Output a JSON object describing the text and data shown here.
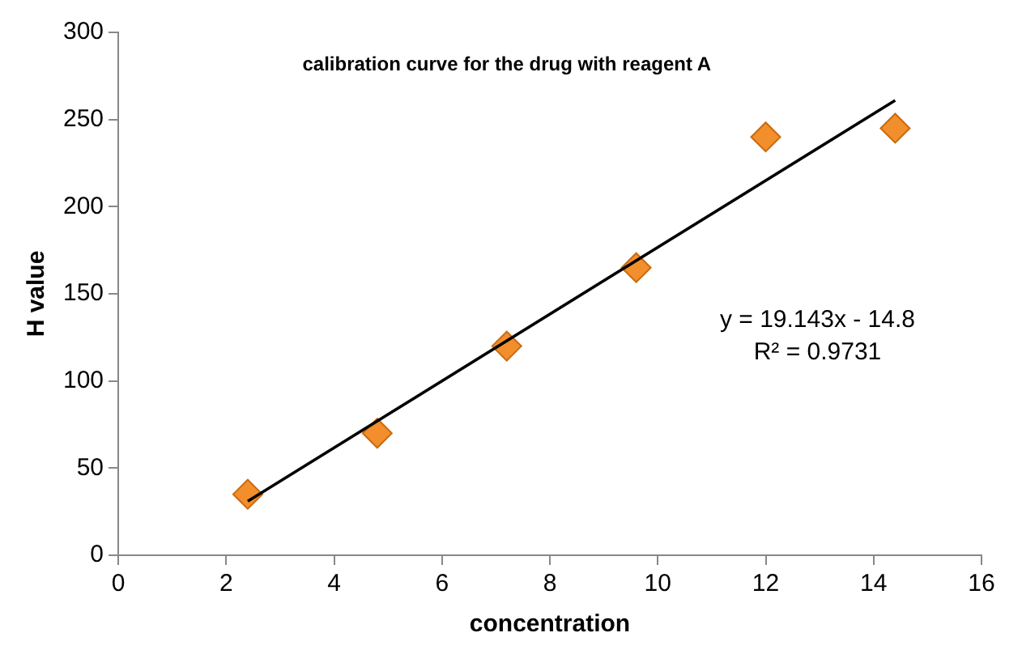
{
  "chart_data": {
    "type": "scatter",
    "title": "calibration curve for the drug with reagent A",
    "xlabel": "concentration",
    "ylabel": "H value",
    "series": [
      {
        "type": "scatter",
        "color": "#f28e2b",
        "x": [
          2.4,
          4.8,
          7.2,
          9.6,
          12,
          14.4
        ],
        "values": [
          35,
          70,
          120,
          165,
          240,
          245
        ],
        "marker": "diamond"
      },
      {
        "type": "line",
        "color": "#000000",
        "x": [
          2.4,
          14.4
        ],
        "values": [
          31,
          261
        ],
        "marker": "none"
      }
    ],
    "xlim": [
      0,
      16
    ],
    "xticks": [
      0,
      2,
      4,
      6,
      8,
      10,
      12,
      14,
      16
    ],
    "ylim": [
      0,
      300
    ],
    "yticks": [
      0,
      50,
      100,
      150,
      200,
      250,
      300
    ],
    "grid": false,
    "legend": false,
    "annotations": [
      "y = 19.143x - 14.8",
      "R² = 0.9731"
    ]
  }
}
